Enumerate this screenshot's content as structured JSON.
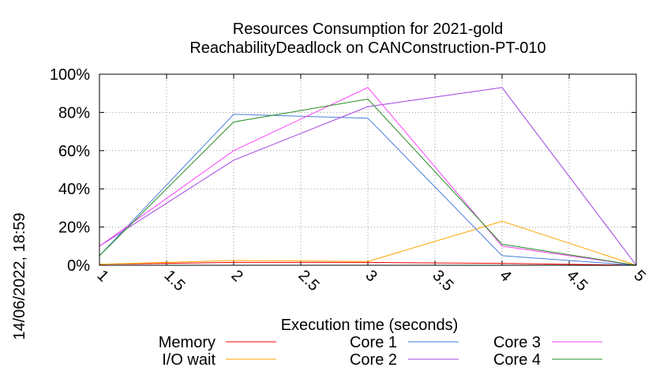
{
  "chart_data": {
    "type": "line",
    "title_lines": [
      "Resources Consumption for 2021-gold",
      "ReachabilityDeadlock on CANConstruction-PT-010"
    ],
    "xlabel": "Execution time (seconds)",
    "ylabel": "",
    "side_label": "14/06/2022, 18:59",
    "xlim": [
      1,
      5
    ],
    "ylim": [
      0,
      100
    ],
    "x_ticks": [
      "1",
      "1.5",
      "2",
      "2.5",
      "3",
      "3.5",
      "4",
      "4.5",
      "5"
    ],
    "y_ticks": [
      "0%",
      "20%",
      "40%",
      "60%",
      "80%",
      "100%"
    ],
    "grid": true,
    "legend_position": "bottom",
    "x": [
      1,
      2,
      3,
      4,
      5
    ],
    "series": [
      {
        "name": "Memory",
        "color": "#ff0000",
        "values": [
          0.5,
          1.5,
          1.5,
          1.0,
          0
        ]
      },
      {
        "name": "I/O wait",
        "color": "#ffa500",
        "values": [
          0.5,
          2.5,
          2.0,
          23,
          0
        ]
      },
      {
        "name": "Core 1",
        "color": "#4a7fdc",
        "values": [
          5,
          79,
          77,
          5,
          0
        ]
      },
      {
        "name": "Core 2",
        "color": "#a040e0",
        "values": [
          10,
          55,
          83,
          93,
          0
        ]
      },
      {
        "name": "Core 3",
        "color": "#ff40ff",
        "values": [
          10,
          60,
          93,
          10,
          0
        ]
      },
      {
        "name": "Core 4",
        "color": "#228b22",
        "values": [
          5,
          75,
          87,
          11,
          0
        ]
      }
    ]
  }
}
